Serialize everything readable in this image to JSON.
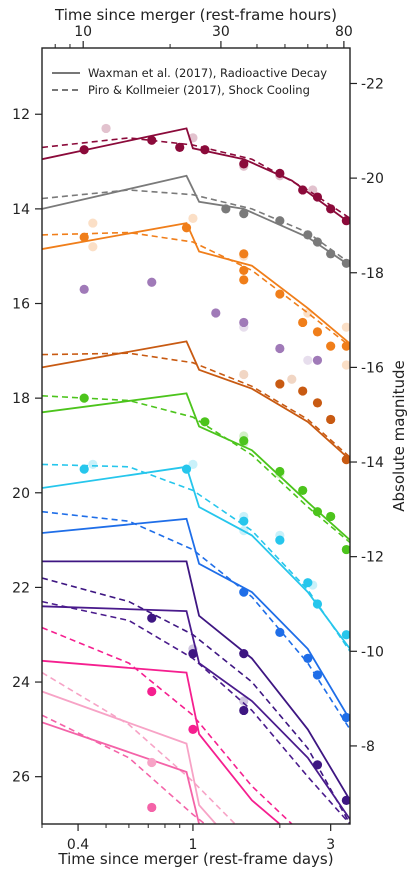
{
  "chart_data": {
    "type": "scatter",
    "xscale": "log",
    "xlabel": "Time since merger (rest-frame days)",
    "x2label": "Time since merger (rest-frame hours)",
    "ylabel_right": "Absolute magnitude",
    "xlim": [
      0.3,
      3.5
    ],
    "ylim": [
      27.0,
      10.6
    ],
    "x_ticks": [
      0.4,
      1,
      3
    ],
    "x_tick_labels": [
      "0.4",
      "1",
      "3"
    ],
    "x2_ticks_hours": [
      10,
      30,
      80
    ],
    "x2_tick_labels": [
      "10",
      "30",
      "80"
    ],
    "y_ticks": [
      12,
      14,
      16,
      18,
      20,
      22,
      24,
      26
    ],
    "y_tick_labels": [
      "12",
      "14",
      "16",
      "18",
      "20",
      "22",
      "24",
      "26"
    ],
    "y2_ticks": [
      -22,
      -20,
      -18,
      -16,
      -14,
      -12,
      -10,
      -8
    ],
    "y2_tick_labels": [
      "-22",
      "-20",
      "-18",
      "-16",
      "-14",
      "-12",
      "-10",
      "-8"
    ],
    "legend": {
      "placement": "top-left",
      "entries": [
        {
          "label": "Waxman et al. (2017), Radioactive Decay",
          "style": "solid"
        },
        {
          "label": "Piro & Kollmeier (2017), Shock Cooling",
          "style": "dashed"
        }
      ]
    },
    "series": [
      {
        "color": "#8b0a3a",
        "points": [
          [
            0.42,
            12.75
          ],
          [
            0.72,
            12.55
          ],
          [
            0.9,
            12.7
          ],
          [
            1.1,
            12.75
          ],
          [
            1.5,
            13.05
          ],
          [
            2.0,
            13.25
          ],
          [
            2.4,
            13.6
          ],
          [
            2.7,
            13.75
          ],
          [
            3.0,
            14.0
          ],
          [
            3.4,
            14.25
          ]
        ],
        "faded": [
          [
            0.5,
            12.3
          ],
          [
            1.0,
            12.5
          ],
          [
            1.5,
            13.1
          ],
          [
            2.0,
            13.3
          ],
          [
            2.6,
            13.6
          ]
        ],
        "solid": [
          [
            0.3,
            12.95
          ],
          [
            0.95,
            12.3
          ],
          [
            1.0,
            12.72
          ],
          [
            1.5,
            12.95
          ],
          [
            2.2,
            13.4
          ],
          [
            3.5,
            14.3
          ]
        ],
        "dashed": [
          [
            0.3,
            12.7
          ],
          [
            0.6,
            12.5
          ],
          [
            1.0,
            12.65
          ],
          [
            1.6,
            12.95
          ],
          [
            2.5,
            13.6
          ],
          [
            3.5,
            14.2
          ]
        ]
      },
      {
        "color": "#7a7a7a",
        "points": [
          [
            1.3,
            14.0
          ],
          [
            1.5,
            14.1
          ],
          [
            2.0,
            14.25
          ],
          [
            2.5,
            14.55
          ],
          [
            2.7,
            14.7
          ],
          [
            3.0,
            14.95
          ],
          [
            3.4,
            15.15
          ]
        ],
        "faded": [],
        "solid": [
          [
            0.3,
            14.0
          ],
          [
            0.95,
            13.3
          ],
          [
            1.05,
            13.85
          ],
          [
            1.5,
            14.0
          ],
          [
            2.5,
            14.6
          ],
          [
            3.5,
            15.2
          ]
        ],
        "dashed": [
          [
            0.3,
            13.78
          ],
          [
            0.6,
            13.6
          ],
          [
            1.0,
            13.7
          ],
          [
            1.6,
            14.0
          ],
          [
            2.5,
            14.5
          ],
          [
            3.5,
            15.15
          ]
        ]
      },
      {
        "color": "#f07e1a",
        "points": [
          [
            0.42,
            14.6
          ],
          [
            0.95,
            14.4
          ],
          [
            1.5,
            14.95
          ],
          [
            1.5,
            15.3
          ],
          [
            1.5,
            15.5
          ],
          [
            2.0,
            15.8
          ],
          [
            2.4,
            16.4
          ],
          [
            2.7,
            16.6
          ],
          [
            3.0,
            16.9
          ],
          [
            3.4,
            16.9
          ]
        ],
        "faded": [
          [
            0.45,
            14.3
          ],
          [
            0.45,
            14.8
          ],
          [
            1.0,
            14.2
          ],
          [
            1.5,
            15.0
          ],
          [
            2.5,
            16.2
          ],
          [
            3.4,
            17.3
          ],
          [
            3.4,
            16.5
          ]
        ],
        "solid": [
          [
            0.3,
            14.85
          ],
          [
            0.95,
            14.3
          ],
          [
            1.05,
            14.9
          ],
          [
            1.6,
            15.2
          ],
          [
            2.5,
            16.1
          ],
          [
            3.5,
            16.85
          ]
        ],
        "dashed": [
          [
            0.3,
            14.55
          ],
          [
            0.6,
            14.5
          ],
          [
            1.0,
            14.7
          ],
          [
            1.6,
            15.3
          ],
          [
            2.5,
            16.2
          ],
          [
            3.5,
            16.9
          ]
        ]
      },
      {
        "color": "#a07ab8",
        "points": [
          [
            0.42,
            15.7
          ],
          [
            0.72,
            15.55
          ],
          [
            1.2,
            16.2
          ],
          [
            1.5,
            16.4
          ],
          [
            2.0,
            16.95
          ],
          [
            2.7,
            17.2
          ]
        ],
        "faded": [
          [
            1.5,
            16.5
          ],
          [
            2.5,
            17.2
          ]
        ],
        "solid": [],
        "dashed": []
      },
      {
        "color": "#c85a12",
        "points": [
          [
            2.0,
            17.7
          ],
          [
            2.4,
            17.85
          ],
          [
            2.7,
            18.1
          ],
          [
            3.0,
            18.45
          ],
          [
            3.4,
            19.3
          ]
        ],
        "faded": [
          [
            1.5,
            17.5
          ],
          [
            2.2,
            17.6
          ]
        ],
        "solid": [
          [
            0.3,
            17.35
          ],
          [
            0.95,
            16.8
          ],
          [
            1.05,
            17.4
          ],
          [
            1.6,
            17.8
          ],
          [
            2.5,
            18.5
          ],
          [
            3.5,
            19.3
          ]
        ],
        "dashed": [
          [
            0.3,
            17.08
          ],
          [
            0.6,
            17.05
          ],
          [
            1.0,
            17.25
          ],
          [
            1.6,
            17.75
          ],
          [
            2.5,
            18.45
          ],
          [
            3.5,
            19.25
          ]
        ]
      },
      {
        "color": "#4cc41c",
        "points": [
          [
            0.42,
            18.0
          ],
          [
            1.1,
            18.5
          ],
          [
            1.5,
            18.9
          ],
          [
            2.0,
            19.55
          ],
          [
            2.4,
            19.95
          ],
          [
            2.7,
            20.4
          ],
          [
            3.0,
            20.5
          ],
          [
            3.4,
            21.2
          ]
        ],
        "faded": [
          [
            1.5,
            18.8
          ],
          [
            1.5,
            18.95
          ],
          [
            2.0,
            19.6
          ]
        ],
        "solid": [
          [
            0.3,
            18.3
          ],
          [
            0.95,
            17.9
          ],
          [
            1.05,
            18.6
          ],
          [
            1.6,
            19.1
          ],
          [
            2.5,
            20.2
          ],
          [
            3.5,
            21.0
          ]
        ],
        "dashed": [
          [
            0.3,
            17.95
          ],
          [
            0.6,
            18.05
          ],
          [
            1.0,
            18.4
          ],
          [
            1.6,
            19.2
          ],
          [
            2.5,
            20.3
          ],
          [
            3.5,
            21.05
          ]
        ]
      },
      {
        "color": "#26c6ec",
        "points": [
          [
            0.42,
            19.5
          ],
          [
            0.95,
            19.5
          ],
          [
            1.5,
            20.6
          ],
          [
            2.0,
            21.0
          ],
          [
            2.5,
            21.9
          ],
          [
            2.7,
            22.35
          ],
          [
            3.4,
            23.0
          ]
        ],
        "faded": [
          [
            0.45,
            19.4
          ],
          [
            1.0,
            19.4
          ],
          [
            1.5,
            20.5
          ],
          [
            1.5,
            20.8
          ],
          [
            2.0,
            20.9
          ],
          [
            2.6,
            21.95
          ]
        ],
        "solid": [
          [
            0.3,
            19.9
          ],
          [
            0.95,
            19.45
          ],
          [
            1.05,
            20.3
          ],
          [
            1.6,
            20.9
          ],
          [
            2.5,
            22.1
          ],
          [
            3.5,
            23.3
          ]
        ],
        "dashed": [
          [
            0.3,
            19.4
          ],
          [
            0.6,
            19.45
          ],
          [
            1.0,
            19.95
          ],
          [
            1.6,
            20.8
          ],
          [
            2.5,
            22.05
          ],
          [
            3.5,
            23.35
          ]
        ]
      },
      {
        "color": "#1f6ee8",
        "points": [
          [
            1.5,
            22.1
          ],
          [
            2.0,
            22.95
          ],
          [
            2.5,
            23.5
          ],
          [
            2.7,
            23.85
          ],
          [
            3.4,
            24.75
          ]
        ],
        "faded": [],
        "solid": [
          [
            0.3,
            20.85
          ],
          [
            0.95,
            20.55
          ],
          [
            1.05,
            21.5
          ],
          [
            1.6,
            22.1
          ],
          [
            2.5,
            23.3
          ],
          [
            3.5,
            24.8
          ]
        ],
        "dashed": [
          [
            0.3,
            20.4
          ],
          [
            0.6,
            20.6
          ],
          [
            1.0,
            21.2
          ],
          [
            1.6,
            22.2
          ],
          [
            2.5,
            23.6
          ],
          [
            3.5,
            25.0
          ]
        ]
      },
      {
        "color": "#3e1682",
        "points": [
          [
            0.72,
            22.65
          ],
          [
            1.0,
            23.4
          ],
          [
            1.5,
            23.4
          ],
          [
            1.5,
            24.6
          ],
          [
            2.7,
            25.75
          ],
          [
            3.4,
            26.5
          ]
        ],
        "faded": [
          [
            1.0,
            23.3
          ],
          [
            1.5,
            24.4
          ]
        ],
        "solid": [
          [
            0.3,
            21.45
          ],
          [
            0.95,
            21.45
          ],
          [
            1.05,
            22.6
          ],
          [
            1.6,
            23.5
          ],
          [
            2.5,
            25.0
          ],
          [
            3.5,
            26.5
          ]
        ],
        "dashed": [
          [
            0.3,
            21.8
          ],
          [
            0.6,
            22.3
          ],
          [
            1.0,
            23.0
          ],
          [
            1.6,
            24.0
          ],
          [
            2.5,
            25.4
          ],
          [
            3.5,
            27.0
          ]
        ]
      },
      {
        "color": "#4a1b8c",
        "points": [],
        "faded": [],
        "solid": [
          [
            0.3,
            22.4
          ],
          [
            0.95,
            22.5
          ],
          [
            1.05,
            23.6
          ],
          [
            1.6,
            24.4
          ],
          [
            2.5,
            25.6
          ],
          [
            3.5,
            26.9
          ]
        ],
        "dashed": [
          [
            0.3,
            22.3
          ],
          [
            0.6,
            22.7
          ],
          [
            1.0,
            23.5
          ],
          [
            1.6,
            24.6
          ],
          [
            2.5,
            26.0
          ],
          [
            3.5,
            27.0
          ]
        ]
      },
      {
        "color": "#f51f8f",
        "points": [
          [
            0.72,
            24.2
          ],
          [
            1.0,
            25.0
          ]
        ],
        "faded": [],
        "solid": [
          [
            0.3,
            23.55
          ],
          [
            0.95,
            23.8
          ],
          [
            1.05,
            25.1
          ],
          [
            1.6,
            26.5
          ],
          [
            2.0,
            27.0
          ]
        ],
        "dashed": [
          [
            0.3,
            22.85
          ],
          [
            0.6,
            23.6
          ],
          [
            1.0,
            24.7
          ],
          [
            1.6,
            26.2
          ],
          [
            2.2,
            27.0
          ]
        ]
      },
      {
        "color": "#f7a3c6",
        "points": [
          [
            0.72,
            25.7
          ]
        ],
        "faded": [],
        "solid": [
          [
            0.3,
            24.2
          ],
          [
            0.95,
            25.3
          ],
          [
            1.05,
            26.6
          ],
          [
            1.2,
            27.0
          ]
        ],
        "dashed": [
          [
            0.3,
            23.8
          ],
          [
            0.6,
            24.9
          ],
          [
            1.0,
            26.1
          ],
          [
            1.4,
            27.0
          ]
        ]
      },
      {
        "color": "#f463a8",
        "points": [
          [
            0.72,
            26.65
          ]
        ],
        "faded": [],
        "solid": [
          [
            0.3,
            24.85
          ],
          [
            0.95,
            25.9
          ],
          [
            1.05,
            27.0
          ]
        ],
        "dashed": [
          [
            0.3,
            24.7
          ],
          [
            0.6,
            25.6
          ],
          [
            1.0,
            26.8
          ],
          [
            1.1,
            27.0
          ]
        ]
      }
    ]
  }
}
